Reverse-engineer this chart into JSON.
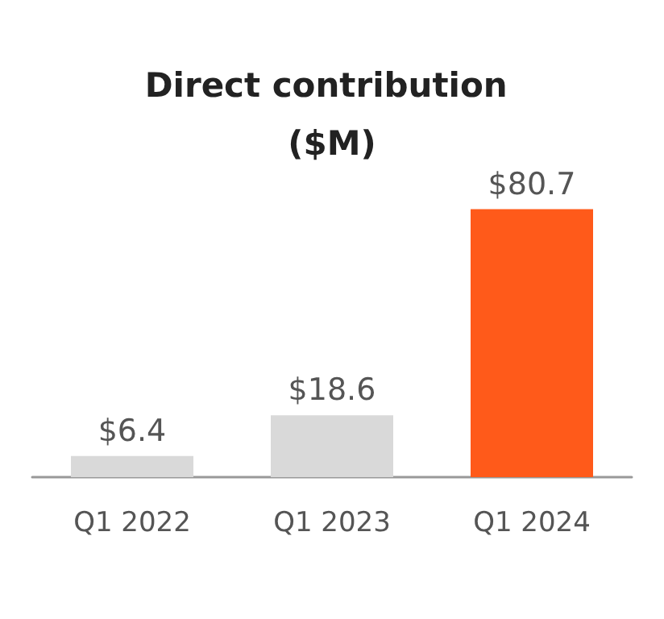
{
  "chart_data": {
    "type": "bar",
    "title": "Direct contribution ($M)",
    "categories": [
      "Q1 2022",
      "Q1 2023",
      "Q1 2024"
    ],
    "values": [
      6.4,
      18.6,
      80.7
    ],
    "colors": [
      "#d9d9d9",
      "#d9d9d9",
      "#ff5a1a"
    ],
    "value_labels": [
      "$6.4",
      "$18.6",
      "$80.7"
    ],
    "grid": false
  }
}
